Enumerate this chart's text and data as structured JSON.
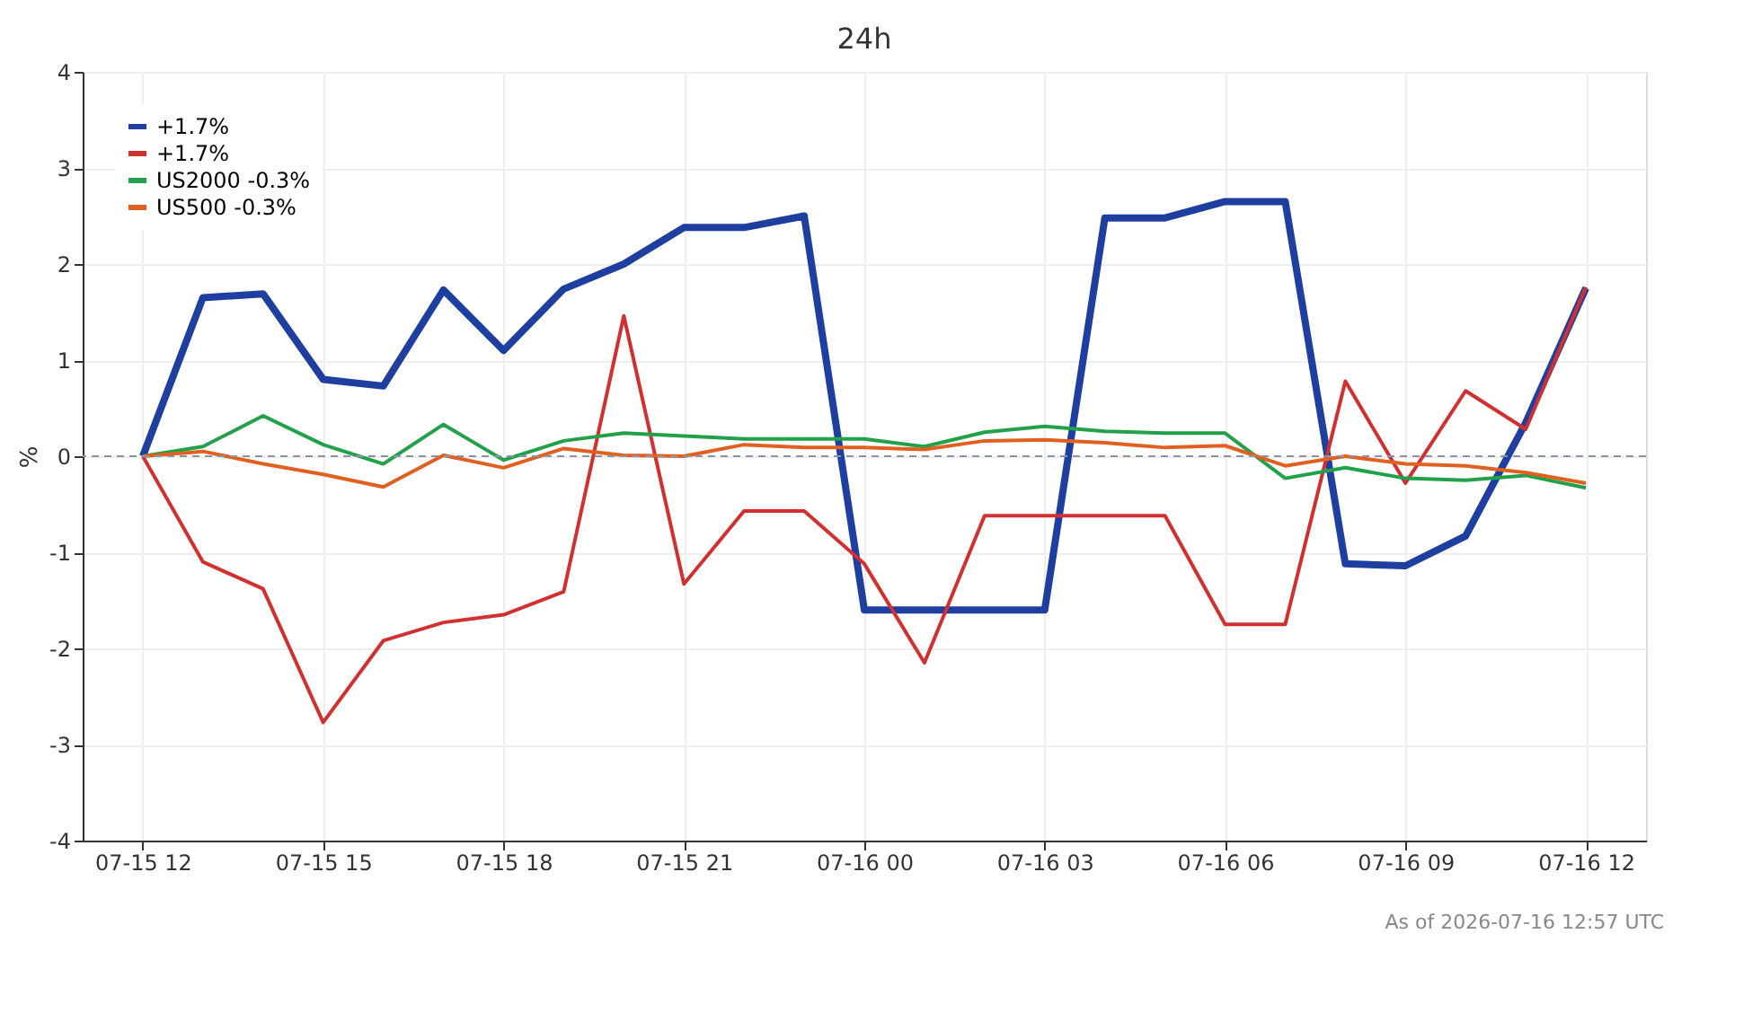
{
  "chart_data": {
    "type": "line",
    "title": "24h",
    "ylabel": "%",
    "x": [
      "2026-07-15T12:00",
      "2026-07-15T13:00",
      "2026-07-15T14:00",
      "2026-07-15T15:00",
      "2026-07-15T16:00",
      "2026-07-15T17:00",
      "2026-07-15T18:00",
      "2026-07-15T19:00",
      "2026-07-15T20:00",
      "2026-07-15T21:00",
      "2026-07-15T22:00",
      "2026-07-15T23:00",
      "2026-07-16T00:00",
      "2026-07-16T01:00",
      "2026-07-16T02:00",
      "2026-07-16T03:00",
      "2026-07-16T04:00",
      "2026-07-16T05:00",
      "2026-07-16T06:00",
      "2026-07-16T07:00",
      "2026-07-16T08:00",
      "2026-07-16T09:00",
      "2026-07-16T10:00",
      "2026-07-16T11:00",
      "2026-07-16T12:00"
    ],
    "series": [
      {
        "name": "+1.7%",
        "color": "#1f3fa0",
        "values": [
          0,
          1.65,
          1.69,
          0.8,
          0.73,
          1.73,
          1.1,
          1.74,
          2.0,
          2.38,
          2.38,
          2.5,
          -1.6,
          -1.6,
          -1.6,
          -1.6,
          2.48,
          2.48,
          2.65,
          2.65,
          -1.12,
          -1.14,
          -0.83,
          0.35,
          1.75
        ]
      },
      {
        "name": "+1.7%",
        "color": "#d03030",
        "values": [
          0,
          -1.1,
          -1.38,
          -2.77,
          -1.92,
          -1.73,
          -1.65,
          -1.41,
          1.46,
          -1.33,
          -0.57,
          -0.57,
          -1.12,
          -2.15,
          -0.62,
          -0.62,
          -0.62,
          -0.62,
          -1.75,
          -1.75,
          0.78,
          -0.28,
          0.68,
          0.28,
          1.76
        ]
      },
      {
        "name": "US2000 -0.3%",
        "color": "#22a04a",
        "values": [
          0,
          0.1,
          0.42,
          0.12,
          -0.08,
          0.33,
          -0.04,
          0.16,
          0.24,
          0.21,
          0.18,
          0.18,
          0.18,
          0.1,
          0.25,
          0.31,
          0.26,
          0.24,
          0.24,
          -0.23,
          -0.12,
          -0.23,
          -0.25,
          -0.2,
          -0.33
        ]
      },
      {
        "name": "US500 -0.3%",
        "color": "#e06020",
        "values": [
          0,
          0.05,
          -0.08,
          -0.19,
          -0.32,
          0.01,
          -0.12,
          0.08,
          0.01,
          0.0,
          0.12,
          0.09,
          0.09,
          0.07,
          0.16,
          0.17,
          0.14,
          0.09,
          0.11,
          -0.1,
          0.0,
          -0.08,
          -0.1,
          -0.17,
          -0.28
        ]
      }
    ],
    "xlim": [
      "2026-07-15T11:00",
      "2026-07-16T13:00"
    ],
    "xticks": [
      {
        "value": "2026-07-15T12:00",
        "label": "07-15 12"
      },
      {
        "value": "2026-07-15T15:00",
        "label": "07-15 15"
      },
      {
        "value": "2026-07-15T18:00",
        "label": "07-15 18"
      },
      {
        "value": "2026-07-15T21:00",
        "label": "07-15 21"
      },
      {
        "value": "2026-07-16T00:00",
        "label": "07-16 00"
      },
      {
        "value": "2026-07-16T03:00",
        "label": "07-16 03"
      },
      {
        "value": "2026-07-16T06:00",
        "label": "07-16 06"
      },
      {
        "value": "2026-07-16T09:00",
        "label": "07-16 09"
      },
      {
        "value": "2026-07-16T12:00",
        "label": "07-16 12"
      }
    ],
    "ylim": [
      -4,
      4
    ],
    "yticks": [
      -4,
      -3,
      -2,
      -1,
      0,
      1,
      2,
      3,
      4
    ],
    "ref_lines": [
      {
        "axis": "y",
        "value": 0,
        "color": "#8a94a6",
        "line_style": "dashed"
      }
    ],
    "grid": true,
    "legend": "top left",
    "marker": "none",
    "line_style": "solid",
    "annotations": [
      "As of 2026-07-16 12:57 UTC"
    ]
  }
}
